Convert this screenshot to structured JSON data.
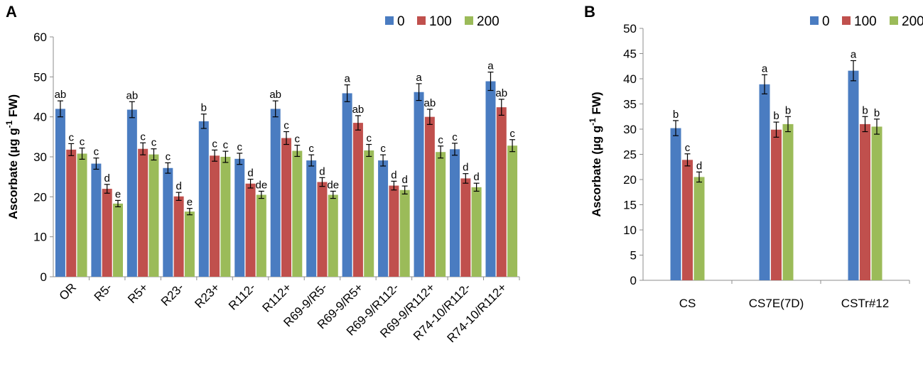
{
  "chart_data": [
    {
      "type": "bar",
      "panel_label": "A",
      "ylabel_parts": [
        "Ascorbate (µg g",
        "-1",
        " FW)"
      ],
      "xlabel": "",
      "ylim": [
        0,
        60
      ],
      "yticks": [
        0,
        10,
        20,
        30,
        40,
        50,
        60
      ],
      "legend_position": "top-right",
      "categories": [
        "OR",
        "R5-",
        "R5+",
        "R23-",
        "R23+",
        "R112-",
        "R112+",
        "R69-9/R5-",
        "R69-9/R5+",
        "R69-9/R112-",
        "R69-9/R112+",
        "R74-10/R112-",
        "R74-10/R112+"
      ],
      "series": [
        {
          "name": "0",
          "color": "#4a7cc1",
          "values": [
            42,
            28.3,
            41.8,
            27.2,
            38.9,
            29.5,
            42,
            29.1,
            45.9,
            29.1,
            46.2,
            31.9,
            48.9
          ],
          "errors": [
            2.0,
            1.4,
            2.0,
            1.3,
            1.8,
            1.4,
            2.0,
            1.4,
            2.1,
            1.4,
            2.1,
            1.5,
            2.3
          ],
          "letters": [
            "ab",
            "c",
            "ab",
            "c",
            "b",
            "c",
            "ab",
            "c",
            "a",
            "c",
            "a",
            "c",
            "a"
          ]
        },
        {
          "name": "100",
          "color": "#c0504d",
          "values": [
            31.8,
            22,
            32,
            20.1,
            30.3,
            23.3,
            34.7,
            23.7,
            38.5,
            22.8,
            40,
            24.6,
            42.4
          ],
          "errors": [
            1.5,
            1.1,
            1.5,
            1.0,
            1.4,
            1.1,
            1.6,
            1.1,
            1.8,
            1.1,
            1.9,
            1.2,
            2.0
          ],
          "letters": [
            "c",
            "d",
            "c",
            "d",
            "c",
            "d",
            "c",
            "d",
            "ab",
            "d",
            "ab",
            "d",
            "ab"
          ]
        },
        {
          "name": "200",
          "color": "#9bbb59",
          "values": [
            30.8,
            18.3,
            30.6,
            16.3,
            30,
            20.5,
            31.5,
            20.5,
            31.6,
            21.7,
            31.2,
            22.4,
            32.8
          ],
          "errors": [
            1.4,
            0.8,
            1.4,
            0.8,
            1.4,
            0.9,
            1.4,
            0.9,
            1.5,
            1.0,
            1.5,
            1.0,
            1.5
          ],
          "letters": [
            "c",
            "e",
            "c",
            "e",
            "c",
            "de",
            "c",
            "de",
            "c",
            "d",
            "c",
            "d",
            "c"
          ]
        }
      ]
    },
    {
      "type": "bar",
      "panel_label": "B",
      "ylabel_parts": [
        "Ascorbate (µg g",
        "-1",
        " FW)"
      ],
      "xlabel": "",
      "ylim": [
        0,
        50
      ],
      "yticks": [
        0,
        5,
        10,
        15,
        20,
        25,
        30,
        35,
        40,
        45,
        50
      ],
      "legend_position": "top-right",
      "categories": [
        "CS",
        "CS7E(7D)",
        "CSTr#12"
      ],
      "series": [
        {
          "name": "0",
          "color": "#4a7cc1",
          "values": [
            30.2,
            38.9,
            41.6
          ],
          "errors": [
            1.5,
            1.9,
            2.0
          ],
          "letters": [
            "b",
            "a",
            "a"
          ]
        },
        {
          "name": "100",
          "color": "#c0504d",
          "values": [
            23.9,
            29.9,
            31
          ],
          "errors": [
            1.2,
            1.5,
            1.5
          ],
          "letters": [
            "c",
            "b",
            "b"
          ]
        },
        {
          "name": "200",
          "color": "#9bbb59",
          "values": [
            20.5,
            31,
            30.5
          ],
          "errors": [
            1.0,
            1.5,
            1.5
          ],
          "letters": [
            "d",
            "b",
            "b"
          ]
        }
      ]
    }
  ]
}
